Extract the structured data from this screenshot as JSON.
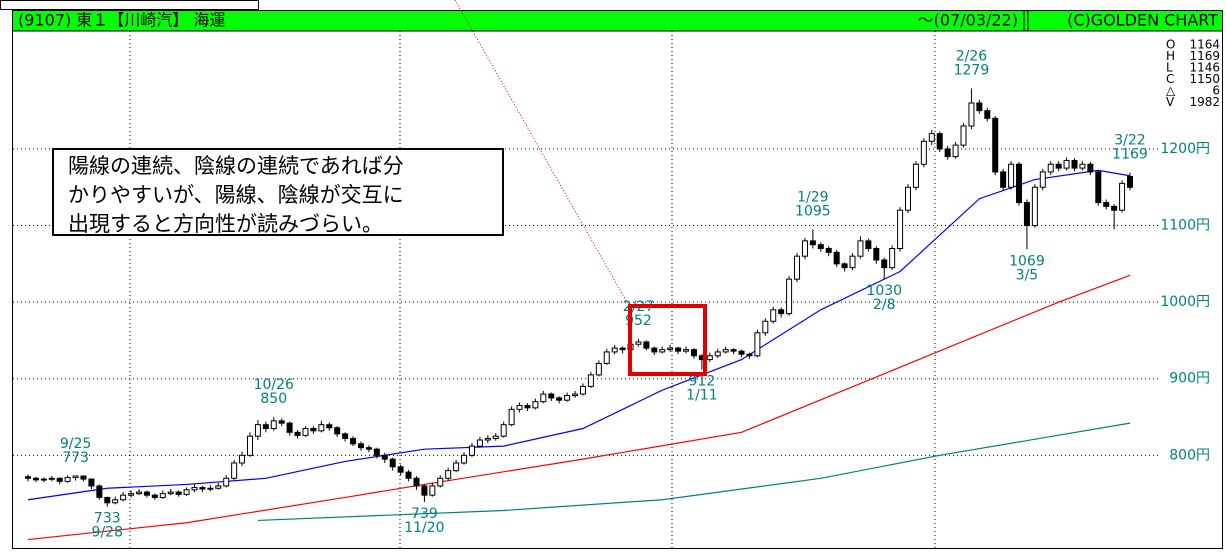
{
  "chart_data": {
    "type": "candlestick",
    "header": {
      "code": "(9107) 東１【川崎汽】 海運",
      "date": "～(07/03/22)",
      "copyright": "(C)GOLDEN CHART"
    },
    "info": [
      {
        "label": "O",
        "value": 1164
      },
      {
        "label": "H",
        "value": 1169
      },
      {
        "label": "L",
        "value": 1146
      },
      {
        "label": "C",
        "value": 1150
      },
      {
        "label": "△",
        "value": 6
      },
      {
        "label": "V",
        "value": 1982
      }
    ],
    "callout": [
      "陽線の連続、陰線の連続であれば分",
      "かりやすいが、陽線、陰線が交互に",
      "出現すると方向性が読みづらい。"
    ],
    "ylim": [
      679,
      1354
    ],
    "yticks": [
      {
        "value": 800,
        "label": "800円"
      },
      {
        "value": 900,
        "label": "900円"
      },
      {
        "value": 1000,
        "label": "1000円"
      },
      {
        "value": 1100,
        "label": "1100円"
      },
      {
        "value": 1200,
        "label": "1200円"
      }
    ],
    "grid": true,
    "up_color": "#ffffff",
    "down_color": "#000000",
    "candles": [
      [
        772,
        775,
        766,
        770
      ],
      [
        770,
        772,
        765,
        768
      ],
      [
        768,
        771,
        765,
        769
      ],
      [
        769,
        773,
        766,
        770
      ],
      [
        770,
        771,
        762,
        766
      ],
      [
        766,
        774,
        764,
        771
      ],
      [
        771,
        773,
        767,
        773
      ],
      [
        773,
        773,
        766,
        769
      ],
      [
        769,
        770,
        756,
        760
      ],
      [
        760,
        762,
        742,
        745
      ],
      [
        745,
        746,
        733,
        738
      ],
      [
        738,
        746,
        736,
        742
      ],
      [
        742,
        752,
        740,
        748
      ],
      [
        748,
        754,
        745,
        750
      ],
      [
        750,
        756,
        748,
        752
      ],
      [
        752,
        754,
        745,
        748
      ],
      [
        748,
        750,
        742,
        745
      ],
      [
        745,
        754,
        743,
        750
      ],
      [
        750,
        756,
        748,
        752
      ],
      [
        752,
        754,
        746,
        749
      ],
      [
        749,
        758,
        747,
        755
      ],
      [
        755,
        762,
        752,
        758
      ],
      [
        758,
        760,
        752,
        756
      ],
      [
        756,
        761,
        753,
        757
      ],
      [
        757,
        764,
        755,
        760
      ],
      [
        760,
        774,
        758,
        770
      ],
      [
        770,
        794,
        768,
        790
      ],
      [
        790,
        805,
        786,
        800
      ],
      [
        800,
        830,
        798,
        825
      ],
      [
        825,
        846,
        820,
        840
      ],
      [
        840,
        844,
        830,
        835
      ],
      [
        835,
        850,
        832,
        845
      ],
      [
        845,
        848,
        838,
        842
      ],
      [
        842,
        844,
        826,
        830
      ],
      [
        830,
        833,
        822,
        826
      ],
      [
        826,
        838,
        824,
        835
      ],
      [
        835,
        838,
        828,
        832
      ],
      [
        832,
        845,
        830,
        840
      ],
      [
        840,
        843,
        832,
        836
      ],
      [
        836,
        838,
        824,
        828
      ],
      [
        828,
        830,
        818,
        822
      ],
      [
        822,
        825,
        812,
        815
      ],
      [
        815,
        818,
        806,
        810
      ],
      [
        810,
        813,
        804,
        808
      ],
      [
        808,
        810,
        796,
        800
      ],
      [
        800,
        803,
        790,
        795
      ],
      [
        795,
        797,
        780,
        785
      ],
      [
        785,
        788,
        774,
        778
      ],
      [
        778,
        781,
        766,
        770
      ],
      [
        770,
        773,
        755,
        760
      ],
      [
        760,
        762,
        739,
        748
      ],
      [
        748,
        764,
        746,
        760
      ],
      [
        760,
        774,
        758,
        770
      ],
      [
        770,
        784,
        767,
        780
      ],
      [
        780,
        794,
        778,
        790
      ],
      [
        790,
        804,
        788,
        800
      ],
      [
        800,
        816,
        798,
        812
      ],
      [
        812,
        824,
        810,
        820
      ],
      [
        820,
        826,
        816,
        822
      ],
      [
        822,
        829,
        819,
        825
      ],
      [
        825,
        844,
        823,
        840
      ],
      [
        840,
        864,
        838,
        860
      ],
      [
        860,
        869,
        856,
        865
      ],
      [
        865,
        868,
        858,
        862
      ],
      [
        862,
        874,
        860,
        870
      ],
      [
        870,
        884,
        868,
        880
      ],
      [
        880,
        882,
        871,
        875
      ],
      [
        875,
        877,
        868,
        872
      ],
      [
        872,
        882,
        870,
        878
      ],
      [
        878,
        884,
        875,
        880
      ],
      [
        880,
        894,
        878,
        890
      ],
      [
        890,
        909,
        888,
        905
      ],
      [
        905,
        924,
        903,
        920
      ],
      [
        920,
        939,
        918,
        935
      ],
      [
        935,
        944,
        932,
        940
      ],
      [
        940,
        942,
        933,
        938
      ],
      [
        938,
        949,
        936,
        945
      ],
      [
        945,
        952,
        942,
        948
      ],
      [
        948,
        950,
        937,
        940
      ],
      [
        940,
        942,
        931,
        935
      ],
      [
        935,
        942,
        933,
        938
      ],
      [
        938,
        944,
        935,
        940
      ],
      [
        940,
        942,
        932,
        936
      ],
      [
        936,
        942,
        933,
        938
      ],
      [
        938,
        940,
        926,
        930
      ],
      [
        930,
        932,
        912,
        925
      ],
      [
        925,
        934,
        922,
        930
      ],
      [
        930,
        939,
        927,
        935
      ],
      [
        935,
        942,
        933,
        938
      ],
      [
        938,
        940,
        932,
        936
      ],
      [
        936,
        938,
        928,
        932
      ],
      [
        932,
        934,
        926,
        930
      ],
      [
        930,
        964,
        928,
        960
      ],
      [
        960,
        979,
        956,
        975
      ],
      [
        975,
        994,
        972,
        990
      ],
      [
        990,
        993,
        980,
        985
      ],
      [
        985,
        1034,
        982,
        1030
      ],
      [
        1030,
        1064,
        1026,
        1060
      ],
      [
        1060,
        1084,
        1056,
        1080
      ],
      [
        1080,
        1095,
        1070,
        1075
      ],
      [
        1075,
        1078,
        1066,
        1070
      ],
      [
        1070,
        1073,
        1060,
        1065
      ],
      [
        1065,
        1068,
        1046,
        1050
      ],
      [
        1050,
        1052,
        1040,
        1045
      ],
      [
        1045,
        1064,
        1042,
        1060
      ],
      [
        1060,
        1086,
        1057,
        1080
      ],
      [
        1080,
        1083,
        1066,
        1070
      ],
      [
        1070,
        1073,
        1050,
        1055
      ],
      [
        1055,
        1058,
        1030,
        1045
      ],
      [
        1045,
        1074,
        1042,
        1070
      ],
      [
        1070,
        1124,
        1066,
        1120
      ],
      [
        1120,
        1154,
        1116,
        1150
      ],
      [
        1150,
        1184,
        1146,
        1180
      ],
      [
        1180,
        1214,
        1176,
        1210
      ],
      [
        1210,
        1225,
        1205,
        1220
      ],
      [
        1220,
        1223,
        1196,
        1200
      ],
      [
        1200,
        1204,
        1186,
        1190
      ],
      [
        1190,
        1209,
        1187,
        1205
      ],
      [
        1205,
        1234,
        1202,
        1230
      ],
      [
        1230,
        1279,
        1226,
        1260
      ],
      [
        1260,
        1264,
        1246,
        1250
      ],
      [
        1250,
        1254,
        1236,
        1240
      ],
      [
        1240,
        1243,
        1166,
        1170
      ],
      [
        1170,
        1174,
        1146,
        1150
      ],
      [
        1150,
        1184,
        1147,
        1180
      ],
      [
        1180,
        1183,
        1126,
        1130
      ],
      [
        1130,
        1134,
        1069,
        1100
      ],
      [
        1100,
        1154,
        1097,
        1150
      ],
      [
        1150,
        1174,
        1146,
        1170
      ],
      [
        1170,
        1184,
        1166,
        1180
      ],
      [
        1180,
        1184,
        1171,
        1175
      ],
      [
        1175,
        1189,
        1172,
        1185
      ],
      [
        1185,
        1188,
        1171,
        1175
      ],
      [
        1175,
        1184,
        1172,
        1180
      ],
      [
        1180,
        1183,
        1166,
        1170
      ],
      [
        1170,
        1173,
        1126,
        1130
      ],
      [
        1130,
        1134,
        1121,
        1125
      ],
      [
        1125,
        1128,
        1095,
        1120
      ],
      [
        1120,
        1159,
        1117,
        1155
      ],
      [
        1164,
        1169,
        1146,
        1150
      ]
    ],
    "moving_averages": [
      {
        "color": "#0000ff",
        "x": [
          0,
          10,
          20,
          30,
          40,
          50,
          60,
          70,
          80,
          90,
          100,
          110,
          120,
          127,
          135,
          139
        ],
        "values": [
          742,
          757,
          762,
          770,
          792,
          808,
          812,
          835,
          885,
          925,
          990,
          1040,
          1135,
          1160,
          1172,
          1165
        ]
      },
      {
        "color": "#ff0000",
        "x": [
          0,
          20,
          40,
          50,
          70,
          90,
          110,
          130,
          139
        ],
        "values": [
          690,
          712,
          745,
          762,
          795,
          830,
          915,
          1000,
          1035
        ]
      },
      {
        "color": "#008080",
        "x": [
          29,
          60,
          80,
          100,
          115,
          139
        ],
        "values": [
          715,
          728,
          742,
          770,
          800,
          842
        ]
      }
    ],
    "annotations": [
      {
        "date": "9/25",
        "price": 773
      },
      {
        "date": "9/28",
        "price": 733
      },
      {
        "date": "10/26",
        "price": 850
      },
      {
        "date": "11/20",
        "price": 739
      },
      {
        "date": "2/27",
        "price": 952
      },
      {
        "date": "1/11",
        "price": 912
      },
      {
        "date": "1/29",
        "price": 1095
      },
      {
        "date": "2/8",
        "price": 1030
      },
      {
        "date": "2/26",
        "price": 1279
      },
      {
        "date": "3/5",
        "price": 1069
      },
      {
        "date": "3/22",
        "price": 1169
      }
    ]
  }
}
